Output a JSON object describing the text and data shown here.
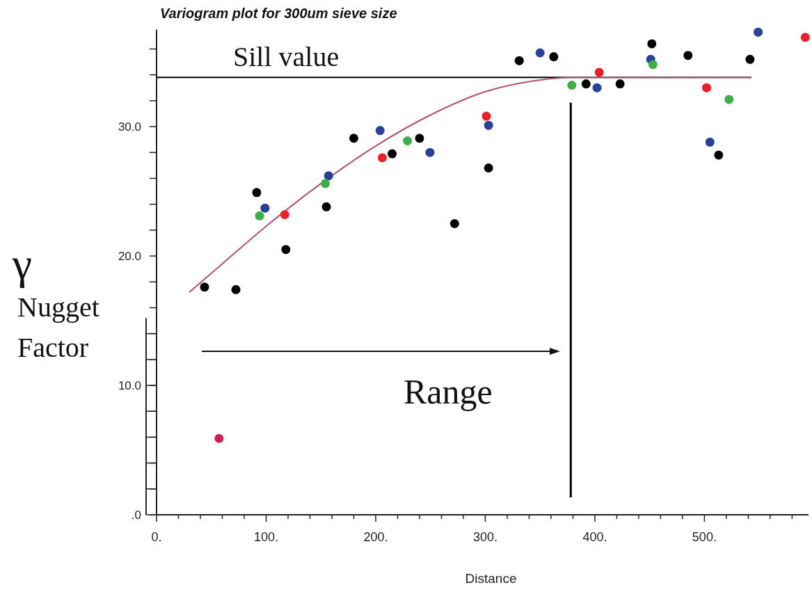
{
  "chart_data": {
    "type": "scatter",
    "title": "Variogram plot for 300um sieve size",
    "xlabel": "Distance",
    "ylabel": "γ",
    "annotations": [
      "Range",
      "Nugget Factor"
    ],
    "xlim": [
      0,
      595
    ],
    "ylim": [
      0,
      37.5
    ],
    "xticks": [
      {
        "value": 0,
        "label": "0."
      },
      {
        "value": 20,
        "label": null
      },
      {
        "value": 40,
        "label": null
      },
      {
        "value": 60,
        "label": null
      },
      {
        "value": 80,
        "label": null
      },
      {
        "value": 100,
        "label": "100."
      },
      {
        "value": 120,
        "label": null
      },
      {
        "value": 140,
        "label": null
      },
      {
        "value": 160,
        "label": null
      },
      {
        "value": 180,
        "label": null
      },
      {
        "value": 200,
        "label": "200."
      },
      {
        "value": 220,
        "label": null
      },
      {
        "value": 240,
        "label": null
      },
      {
        "value": 260,
        "label": null
      },
      {
        "value": 280,
        "label": null
      },
      {
        "value": 300,
        "label": "300."
      },
      {
        "value": 320,
        "label": null
      },
      {
        "value": 340,
        "label": null
      },
      {
        "value": 360,
        "label": null
      },
      {
        "value": 380,
        "label": null
      },
      {
        "value": 400,
        "label": "400."
      },
      {
        "value": 420,
        "label": null
      },
      {
        "value": 440,
        "label": null
      },
      {
        "value": 460,
        "label": null
      },
      {
        "value": 480,
        "label": null
      },
      {
        "value": 500,
        "label": "500."
      },
      {
        "value": 520,
        "label": null
      },
      {
        "value": 540,
        "label": null
      },
      {
        "value": 560,
        "label": null
      },
      {
        "value": 580,
        "label": null
      }
    ],
    "yticks": [
      {
        "value": 0,
        "label": ".0"
      },
      {
        "value": 2,
        "label": null
      },
      {
        "value": 4,
        "label": null
      },
      {
        "value": 6,
        "label": null
      },
      {
        "value": 8,
        "label": null
      },
      {
        "value": 10,
        "label": "10.0"
      },
      {
        "value": 12,
        "label": null
      },
      {
        "value": 14,
        "label": null
      },
      {
        "value": 16,
        "label": null
      },
      {
        "value": 18,
        "label": null
      },
      {
        "value": 20,
        "label": "20.0"
      },
      {
        "value": 22,
        "label": null
      },
      {
        "value": 24,
        "label": null
      },
      {
        "value": 26,
        "label": null
      },
      {
        "value": 28,
        "label": null
      },
      {
        "value": 30,
        "label": "30.0"
      },
      {
        "value": 32,
        "label": null
      },
      {
        "value": 34,
        "label": null
      },
      {
        "value": 36,
        "label": null
      }
    ],
    "grid": false,
    "marker": "circle",
    "ref_lines": [
      {
        "axis": "y",
        "value": 33.8,
        "label": "Sill value",
        "color": "#000000"
      },
      {
        "axis": "x",
        "value": 378,
        "color": "#000000"
      }
    ],
    "series": [
      {
        "type": "line",
        "color": "#b0506e",
        "marker": "none",
        "x": [
          30,
          60,
          100,
          150,
          200,
          250,
          300,
          350,
          378,
          450,
          543
        ],
        "values": [
          17.2,
          19.4,
          22.3,
          25.6,
          28.5,
          30.9,
          32.7,
          33.6,
          33.8,
          33.8,
          33.8
        ]
      },
      {
        "color": "#000000",
        "x": [
          43.8,
          72.4,
          91.4,
          118,
          155,
          180,
          215,
          240,
          272,
          303,
          331,
          362.5,
          392,
          423,
          452,
          485,
          513,
          541.6
        ],
        "values": [
          17.6,
          17.4,
          24.9,
          20.5,
          23.8,
          29.1,
          27.9,
          29.1,
          22.5,
          26.8,
          35.1,
          35.4,
          33.3,
          33.3,
          36.4,
          35.5,
          27.8,
          35.2
        ]
      },
      {
        "color": "#2a3f9a",
        "x": [
          99,
          157,
          204,
          249.5,
          303,
          350,
          402,
          451,
          505,
          549
        ],
        "values": [
          23.7,
          26.2,
          29.7,
          28.0,
          30.1,
          35.7,
          33.0,
          35.2,
          28.8,
          37.3
        ]
      },
      {
        "color": "#3fae49",
        "x": [
          94,
          154,
          229,
          379,
          453,
          522.5
        ],
        "values": [
          23.1,
          25.6,
          28.9,
          33.2,
          34.8,
          32.1
        ]
      },
      {
        "color": "#e8202a",
        "x": [
          117,
          206,
          301,
          404,
          502,
          592
        ],
        "values": [
          23.2,
          27.6,
          30.8,
          34.2,
          33.0,
          36.9
        ]
      },
      {
        "color": "#d01e5a",
        "x": [
          57
        ],
        "values": [
          5.9
        ]
      }
    ]
  }
}
